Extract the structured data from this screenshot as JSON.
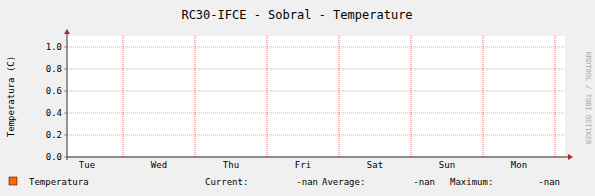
{
  "chart_data": {
    "type": "line",
    "title": "RC30-IFCE - Sobral - Temperature",
    "y_label": "Temperatura (C)",
    "categories": [
      "Tue",
      "Wed",
      "Thu",
      "Fri",
      "Sat",
      "Sun",
      "Mon"
    ],
    "series": [
      {
        "name": "Temperatura",
        "color": "#ff6600",
        "values": [
          null,
          null,
          null,
          null,
          null,
          null,
          null
        ]
      }
    ],
    "ylim": [
      0,
      1.1
    ],
    "yticks": [
      {
        "value": 0,
        "label": "0.0"
      },
      {
        "value": 0.2,
        "label": "0.2"
      },
      {
        "value": 0.4,
        "label": "0.4"
      },
      {
        "value": 0.6,
        "label": "0.6"
      },
      {
        "value": 0.8,
        "label": "0.8"
      },
      {
        "value": 1,
        "label": "1.0"
      }
    ],
    "grid": true,
    "legend_stats": [
      {
        "label": "Current:",
        "value": "-nan"
      },
      {
        "label": "Average:",
        "value": "-nan"
      },
      {
        "label": "Maximum:",
        "value": "-nan"
      }
    ],
    "watermark": "RRDTOOL / TOBI OETIKER"
  }
}
